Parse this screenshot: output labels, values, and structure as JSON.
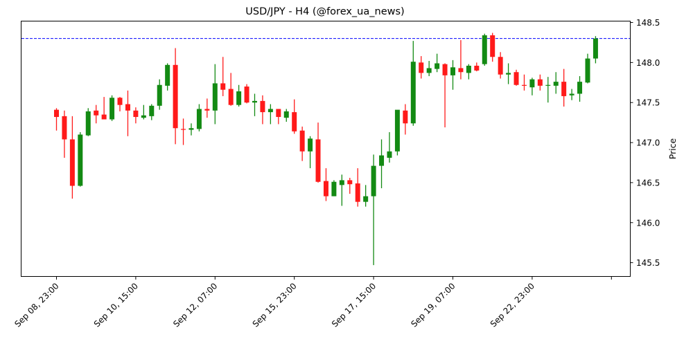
{
  "chart_data": {
    "type": "candlestick",
    "title": "USD/JPY - H4 (@forex_ua_news)",
    "xlabel": "",
    "ylabel": "Price",
    "ylim": [
      145.33,
      148.59
    ],
    "y_ticks": [
      145.5,
      146.0,
      146.5,
      147.0,
      147.5,
      148.0,
      148.5
    ],
    "y_tick_labels": [
      "145.5",
      "146.0",
      "146.5",
      "147.0",
      "147.5",
      "148.0",
      "148.5"
    ],
    "y_axis_side": "right",
    "x_tick_labels": [
      "Sep 08, 23:00",
      "Sep 10, 15:00",
      "Sep 12, 07:00",
      "Sep 15, 23:00",
      "Sep 17, 15:00",
      "Sep 19, 07:00",
      "Sep 22, 23:00",
      ""
    ],
    "x_tick_every_n_candles": 10,
    "grid": false,
    "legend": null,
    "reference_line": {
      "value": 148.3,
      "style": "dashed",
      "color": "#0000ff"
    },
    "colors": {
      "up": "#138a13",
      "down": "#ff1a1a"
    },
    "candles": [
      {
        "o": 147.41,
        "h": 147.43,
        "l": 147.15,
        "c": 147.32
      },
      {
        "o": 147.33,
        "h": 147.4,
        "l": 146.81,
        "c": 147.04
      },
      {
        "o": 147.04,
        "h": 147.33,
        "l": 146.3,
        "c": 146.46
      },
      {
        "o": 146.46,
        "h": 147.13,
        "l": 146.45,
        "c": 147.1
      },
      {
        "o": 147.09,
        "h": 147.43,
        "l": 147.08,
        "c": 147.39
      },
      {
        "o": 147.4,
        "h": 147.47,
        "l": 147.24,
        "c": 147.34
      },
      {
        "o": 147.35,
        "h": 147.57,
        "l": 147.29,
        "c": 147.29
      },
      {
        "o": 147.29,
        "h": 147.59,
        "l": 147.27,
        "c": 147.56
      },
      {
        "o": 147.56,
        "h": 147.57,
        "l": 147.39,
        "c": 147.47
      },
      {
        "o": 147.48,
        "h": 147.65,
        "l": 147.08,
        "c": 147.4
      },
      {
        "o": 147.4,
        "h": 147.44,
        "l": 147.24,
        "c": 147.32
      },
      {
        "o": 147.31,
        "h": 147.47,
        "l": 147.29,
        "c": 147.34
      },
      {
        "o": 147.33,
        "h": 147.48,
        "l": 147.28,
        "c": 147.46
      },
      {
        "o": 147.46,
        "h": 147.79,
        "l": 147.41,
        "c": 147.72
      },
      {
        "o": 147.71,
        "h": 147.99,
        "l": 147.65,
        "c": 147.97
      },
      {
        "o": 147.97,
        "h": 148.18,
        "l": 146.98,
        "c": 147.18
      },
      {
        "o": 147.17,
        "h": 147.3,
        "l": 146.97,
        "c": 147.16
      },
      {
        "o": 147.16,
        "h": 147.24,
        "l": 147.09,
        "c": 147.18
      },
      {
        "o": 147.17,
        "h": 147.48,
        "l": 147.14,
        "c": 147.42
      },
      {
        "o": 147.42,
        "h": 147.55,
        "l": 147.31,
        "c": 147.4
      },
      {
        "o": 147.4,
        "h": 147.98,
        "l": 147.23,
        "c": 147.74
      },
      {
        "o": 147.74,
        "h": 148.07,
        "l": 147.58,
        "c": 147.66
      },
      {
        "o": 147.67,
        "h": 147.87,
        "l": 147.46,
        "c": 147.47
      },
      {
        "o": 147.47,
        "h": 147.72,
        "l": 147.45,
        "c": 147.64
      },
      {
        "o": 147.7,
        "h": 147.73,
        "l": 147.49,
        "c": 147.5
      },
      {
        "o": 147.5,
        "h": 147.61,
        "l": 147.33,
        "c": 147.52
      },
      {
        "o": 147.52,
        "h": 147.59,
        "l": 147.23,
        "c": 147.38
      },
      {
        "o": 147.38,
        "h": 147.48,
        "l": 147.23,
        "c": 147.42
      },
      {
        "o": 147.42,
        "h": 147.42,
        "l": 147.23,
        "c": 147.32
      },
      {
        "o": 147.31,
        "h": 147.42,
        "l": 147.26,
        "c": 147.39
      },
      {
        "o": 147.38,
        "h": 147.54,
        "l": 147.11,
        "c": 147.14
      },
      {
        "o": 147.15,
        "h": 147.2,
        "l": 146.77,
        "c": 146.89
      },
      {
        "o": 146.89,
        "h": 147.08,
        "l": 146.68,
        "c": 147.05
      },
      {
        "o": 147.04,
        "h": 147.25,
        "l": 146.5,
        "c": 146.51
      },
      {
        "o": 146.52,
        "h": 146.68,
        "l": 146.27,
        "c": 146.33
      },
      {
        "o": 146.33,
        "h": 146.53,
        "l": 146.33,
        "c": 146.51
      },
      {
        "o": 146.47,
        "h": 146.6,
        "l": 146.21,
        "c": 146.53
      },
      {
        "o": 146.53,
        "h": 146.56,
        "l": 146.36,
        "c": 146.48
      },
      {
        "o": 146.49,
        "h": 146.68,
        "l": 146.2,
        "c": 146.26
      },
      {
        "o": 146.26,
        "h": 146.47,
        "l": 146.2,
        "c": 146.33
      },
      {
        "o": 146.33,
        "h": 146.85,
        "l": 145.47,
        "c": 146.71
      },
      {
        "o": 146.71,
        "h": 147.04,
        "l": 146.43,
        "c": 146.84
      },
      {
        "o": 146.81,
        "h": 147.13,
        "l": 146.75,
        "c": 146.89
      },
      {
        "o": 146.89,
        "h": 147.28,
        "l": 146.84,
        "c": 147.41
      },
      {
        "o": 147.4,
        "h": 147.48,
        "l": 147.1,
        "c": 147.24
      },
      {
        "o": 147.24,
        "h": 148.27,
        "l": 147.21,
        "c": 148.01
      },
      {
        "o": 148.0,
        "h": 148.08,
        "l": 147.8,
        "c": 147.87
      },
      {
        "o": 147.87,
        "h": 148.02,
        "l": 147.83,
        "c": 147.93
      },
      {
        "o": 147.92,
        "h": 148.11,
        "l": 147.88,
        "c": 147.99
      },
      {
        "o": 147.98,
        "h": 147.99,
        "l": 147.19,
        "c": 147.84
      },
      {
        "o": 147.84,
        "h": 148.03,
        "l": 147.66,
        "c": 147.94
      },
      {
        "o": 147.93,
        "h": 148.28,
        "l": 147.79,
        "c": 147.88
      },
      {
        "o": 147.87,
        "h": 147.98,
        "l": 147.79,
        "c": 147.96
      },
      {
        "o": 147.96,
        "h": 148.0,
        "l": 147.89,
        "c": 147.9
      },
      {
        "o": 147.98,
        "h": 148.36,
        "l": 147.96,
        "c": 148.34
      },
      {
        "o": 148.34,
        "h": 148.37,
        "l": 148.01,
        "c": 148.07
      },
      {
        "o": 148.07,
        "h": 148.13,
        "l": 147.8,
        "c": 147.85
      },
      {
        "o": 147.85,
        "h": 147.99,
        "l": 147.73,
        "c": 147.87
      },
      {
        "o": 147.88,
        "h": 147.91,
        "l": 147.71,
        "c": 147.72
      },
      {
        "o": 147.72,
        "h": 147.85,
        "l": 147.65,
        "c": 147.71
      },
      {
        "o": 147.69,
        "h": 147.81,
        "l": 147.59,
        "c": 147.79
      },
      {
        "o": 147.79,
        "h": 147.85,
        "l": 147.65,
        "c": 147.71
      },
      {
        "o": 147.71,
        "h": 147.82,
        "l": 147.5,
        "c": 147.72
      },
      {
        "o": 147.71,
        "h": 147.88,
        "l": 147.61,
        "c": 147.76
      },
      {
        "o": 147.76,
        "h": 147.92,
        "l": 147.45,
        "c": 147.58
      },
      {
        "o": 147.59,
        "h": 147.67,
        "l": 147.53,
        "c": 147.61
      },
      {
        "o": 147.61,
        "h": 147.83,
        "l": 147.51,
        "c": 147.76
      },
      {
        "o": 147.75,
        "h": 148.11,
        "l": 147.74,
        "c": 148.05
      },
      {
        "o": 148.05,
        "h": 148.33,
        "l": 147.99,
        "c": 148.3
      }
    ]
  }
}
